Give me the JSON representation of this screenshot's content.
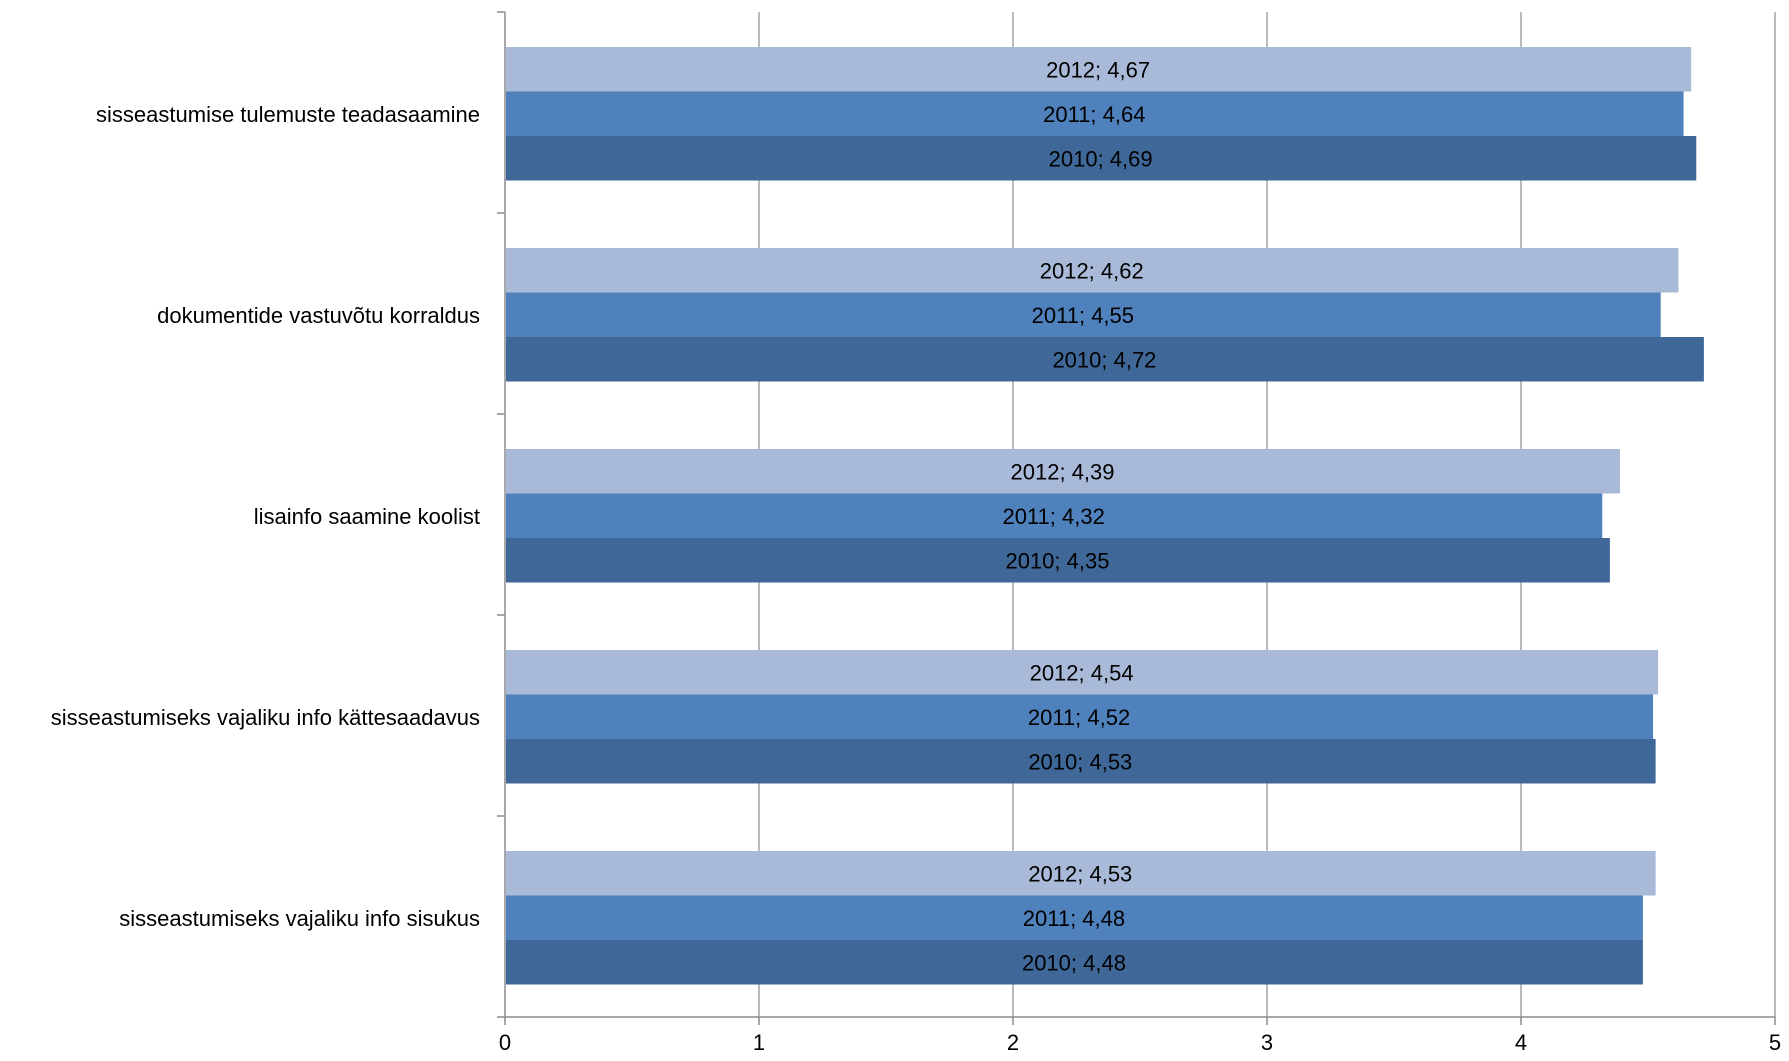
{
  "chart_data": {
    "type": "bar",
    "orientation": "horizontal",
    "categories": [
      "sisseastumise tulemuste teadasaamine",
      "dokumentide vastuvõtu korraldus",
      "lisainfo saamine koolist",
      "sisseastumiseks vajaliku info kättesaadavus",
      "sisseastumiseks vajaliku info sisukus"
    ],
    "series": [
      {
        "name": "2012",
        "color": "#A9B9D8",
        "values": [
          4.67,
          4.62,
          4.39,
          4.54,
          4.53
        ],
        "labels": [
          "2012; 4,67",
          "2012; 4,62",
          "2012; 4,39",
          "2012; 4,54",
          "2012; 4,53"
        ]
      },
      {
        "name": "2011",
        "color": "#4F81BD",
        "values": [
          4.64,
          4.55,
          4.32,
          4.52,
          4.48
        ],
        "labels": [
          "2011; 4,64",
          "2011; 4,55",
          "2011; 4,32",
          "2011; 4,52",
          "2011; 4,48"
        ]
      },
      {
        "name": "2010",
        "color": "#3F6899",
        "values": [
          4.69,
          4.72,
          4.35,
          4.53,
          4.48
        ],
        "labels": [
          "2010; 4,69",
          "2010; 4,72",
          "2010; 4,35",
          "2010; 4,53",
          "2010; 4,48"
        ]
      }
    ],
    "xlim": [
      0,
      5
    ],
    "xticks": [
      "0",
      "1",
      "2",
      "3",
      "4",
      "5"
    ],
    "grid": "vertical",
    "legend": "none",
    "title": "",
    "xlabel": "",
    "ylabel": ""
  }
}
